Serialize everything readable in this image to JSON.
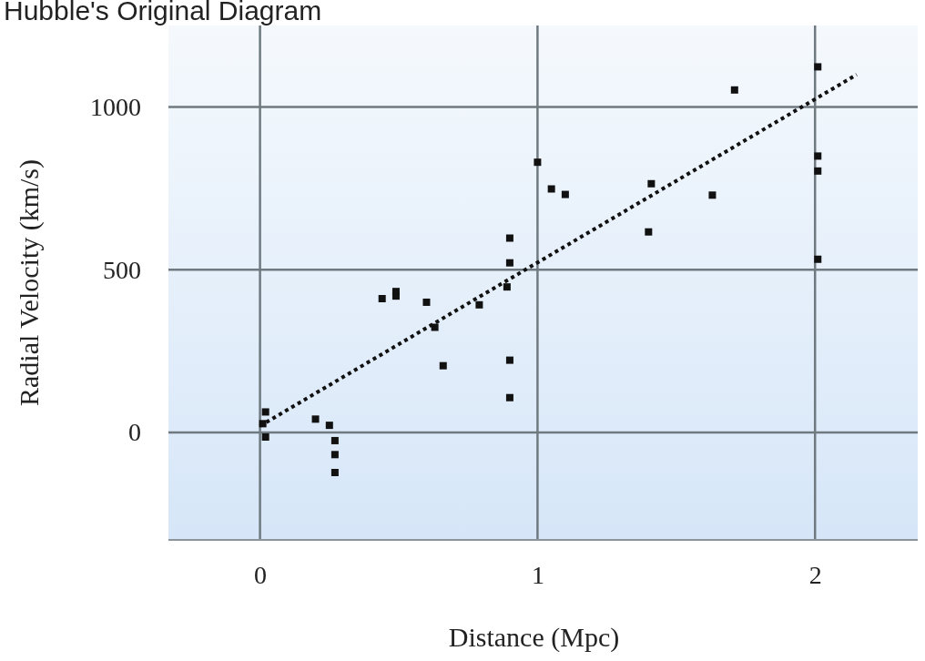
{
  "chart_data": {
    "type": "scatter",
    "title": "Hubble's Original Diagram",
    "xlabel": "Distance (Mpc)",
    "ylabel": "Radial Velocity (km/s)",
    "xlim": [
      -0.33,
      2.37
    ],
    "ylim": [
      -330,
      1250
    ],
    "xticks": [
      0,
      1,
      2
    ],
    "yticks": [
      0,
      500,
      1000
    ],
    "grid": true,
    "series": [
      {
        "color": "#111111",
        "marker": "square",
        "x": [
          0.02,
          0.01,
          0.02,
          0.2,
          0.25,
          0.27,
          0.27,
          0.27,
          0.44,
          0.49,
          0.49,
          0.6,
          0.63,
          0.66,
          0.79,
          0.9,
          0.9,
          0.89,
          0.9,
          0.9,
          1.0,
          1.05,
          1.1,
          1.4,
          1.41,
          1.63,
          1.71,
          2.01,
          2.01,
          2.01,
          2.01
        ],
        "values": [
          63,
          27,
          -14,
          41,
          22,
          -25,
          -68,
          -123,
          411,
          433,
          419,
          400,
          323,
          205,
          392,
          597,
          521,
          447,
          222,
          107,
          830,
          748,
          731,
          616,
          764,
          729,
          1052,
          1123,
          849,
          803,
          532
        ]
      },
      {
        "type": "line",
        "color": "#111111",
        "line_style": "dotted",
        "marker": "none",
        "x": [
          0,
          2.15
        ],
        "values": [
          20,
          1099
        ]
      }
    ]
  }
}
